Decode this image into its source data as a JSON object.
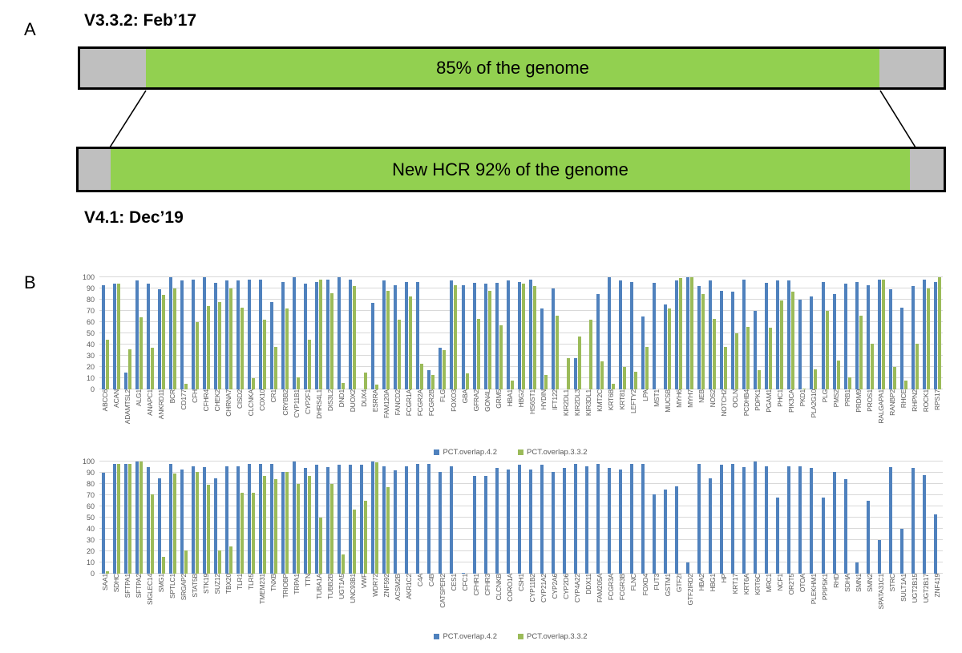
{
  "panel_a": {
    "label": "A",
    "title_top": "V3.3.2: Feb’17",
    "title_bottom": "V4.1: Dec’19",
    "bar_top_text": "85% of the genome",
    "bar_bottom_text": "New HCR 92% of the genome",
    "colors": {
      "green": "#92d050",
      "grey": "#bfbfbf",
      "border": "#000000"
    }
  },
  "panel_b": {
    "label": "B"
  },
  "chart_data": [
    {
      "type": "bar",
      "title": "",
      "xlabel": "",
      "ylabel": "",
      "ylim": [
        0,
        100
      ],
      "yticks": [
        0,
        10,
        20,
        30,
        40,
        50,
        60,
        70,
        80,
        90,
        100
      ],
      "grid": true,
      "legend_position": "bottom",
      "categories": [
        "ABCC6",
        "ACAN",
        "ADAMTSL2",
        "ALG1",
        "ANAPC1",
        "ANKRD11",
        "BCR",
        "CD177",
        "CFH",
        "CFHR4",
        "CHEK2",
        "CHRNA7",
        "CISD2",
        "CLCNKA",
        "COX10",
        "CR1",
        "CRYBB2",
        "CYP11B1",
        "CYP2F1",
        "DHRS4L1",
        "DIS3L2",
        "DND1",
        "DUOX2",
        "DUX4",
        "ESRRA",
        "FAM120A",
        "FANCD2",
        "FCGR1A",
        "FCGR2A",
        "FCGR2B",
        "FLG",
        "FOXO3",
        "GBA",
        "GFRA2",
        "GON4L",
        "GRM5",
        "HBA1",
        "HBG2",
        "HS6ST1",
        "HYDIN",
        "IFT122",
        "KIR2DL1",
        "KIR2DL3",
        "KIR3DL1",
        "KMT2C",
        "KRT6B",
        "KRT81",
        "LEFTY2",
        "LPA",
        "MST1",
        "MUC5B",
        "MYH6",
        "MYH7",
        "NEB",
        "NOS2",
        "NOTCH2",
        "OCLN",
        "PCDHB4",
        "PDPK1",
        "PGAM1",
        "PHC1",
        "PIK3CA",
        "PKD1",
        "PLA2G10",
        "PLG",
        "PMS2",
        "PRB1",
        "PRDM9",
        "PROS1",
        "RALGAPA1",
        "RANBP2",
        "RHCE",
        "RHPN2",
        "ROCK1",
        "RPS17"
      ],
      "series": [
        {
          "name": "PCT.overlap.4.2",
          "color": "#4f81bd",
          "values": [
            93,
            94,
            15,
            97,
            94,
            89,
            100,
            97,
            98,
            100,
            95,
            97,
            97,
            98,
            98,
            78,
            96,
            100,
            94,
            96,
            98,
            100,
            98,
            0,
            77,
            97,
            93,
            96,
            96,
            17,
            37,
            97,
            93,
            95,
            94,
            95,
            97,
            96,
            98,
            72,
            90,
            0,
            28,
            0,
            85,
            100,
            97,
            96,
            65,
            95,
            76,
            97,
            100,
            92,
            97,
            88,
            87,
            98,
            70,
            95,
            97,
            97,
            80,
            83,
            96,
            85,
            94,
            96,
            93,
            98,
            89,
            73,
            92,
            98,
            96
          ]
        },
        {
          "name": "PCT.overlap.3.3.2",
          "color": "#9bbb59",
          "values": [
            44,
            94,
            36,
            64,
            37,
            84,
            90,
            5,
            60,
            74,
            78,
            90,
            73,
            10,
            62,
            38,
            72,
            11,
            44,
            98,
            86,
            6,
            92,
            15,
            4,
            88,
            62,
            83,
            23,
            13,
            35,
            93,
            14,
            63,
            88,
            57,
            8,
            94,
            92,
            13,
            66,
            28,
            47,
            62,
            25,
            5,
            20,
            16,
            38,
            0,
            72,
            99,
            100,
            85,
            63,
            38,
            50,
            56,
            17,
            55,
            79,
            87,
            1,
            18,
            70,
            26,
            11,
            66,
            41,
            98,
            20,
            8,
            41,
            90,
            100
          ]
        }
      ]
    },
    {
      "type": "bar",
      "title": "",
      "xlabel": "",
      "ylabel": "",
      "ylim": [
        0,
        100
      ],
      "yticks": [
        0,
        10,
        20,
        30,
        40,
        50,
        60,
        70,
        80,
        90,
        100
      ],
      "grid": true,
      "legend_position": "bottom",
      "categories": [
        "SAA1",
        "SDHC",
        "SFTPA1",
        "SFTPA2",
        "SIGLEC14",
        "SMG1",
        "SPTLC1",
        "SRGAP2",
        "STAT5B",
        "STK19",
        "SUZ12",
        "TBX20",
        "TLR1",
        "TLR5",
        "TMEM231",
        "TNXB",
        "TRIOBP",
        "TRPA1",
        "TTN",
        "TUBA1A",
        "TUBB2B",
        "UGT1A5",
        "UNC93B1",
        "VWF",
        "WDR72",
        "ZNF592",
        "ACSM2B",
        "AKR1C2",
        "C4A",
        "C4B",
        "CATSPER2",
        "CES1",
        "CFC1",
        "CFHR1",
        "CFHR3",
        "CLCNKB",
        "CORO1A",
        "CSH1",
        "CYP11B2",
        "CYP21A2",
        "CYP2A6",
        "CYP2D6",
        "CYP4A22",
        "DDX11",
        "FAM205A",
        "FCGR3A",
        "FCGR3B",
        "FLNC",
        "FOXD4",
        "FUT3",
        "GSTM1",
        "GTF2I",
        "GTF2IRD2",
        "HBA2",
        "HBG1",
        "HP",
        "KRT17",
        "KRT6A",
        "KRT6C",
        "MRC1",
        "NCF1",
        "OR2T5",
        "OTOA",
        "PLEKHM1",
        "PPIP5K1",
        "RHD",
        "SDHA",
        "SMN1",
        "SMN2",
        "SPATA31C1",
        "STRC",
        "SULT1A1",
        "UGT2B15",
        "UGT2B17",
        "ZNF419"
      ],
      "series": [
        {
          "name": "PCT.overlap.4.2",
          "color": "#4f81bd",
          "values": [
            90,
            98,
            98,
            100,
            95,
            85,
            98,
            93,
            96,
            95,
            85,
            96,
            96,
            98,
            98,
            98,
            91,
            100,
            94,
            97,
            95,
            97,
            97,
            97,
            100,
            96,
            92,
            96,
            98,
            98,
            91,
            96,
            1,
            87,
            87,
            94,
            93,
            97,
            93,
            97,
            91,
            94,
            98,
            96,
            98,
            94,
            93,
            98,
            98,
            71,
            75,
            78,
            10,
            98,
            85,
            97,
            98,
            95,
            100,
            96,
            68,
            96,
            96,
            94,
            68,
            91,
            84,
            10,
            65,
            30,
            95,
            40,
            94,
            88,
            53
          ]
        },
        {
          "name": "PCT.overlap.3.3.2",
          "color": "#9bbb59",
          "values": [
            2,
            98,
            98,
            100,
            71,
            15,
            89,
            21,
            91,
            79,
            21,
            24,
            72,
            72,
            87,
            84,
            91,
            80,
            87,
            50,
            80,
            17,
            57,
            65,
            99,
            77,
            0,
            0,
            0,
            0,
            0,
            0,
            0,
            0,
            0,
            0,
            0,
            0,
            0,
            0,
            0,
            0,
            0,
            0,
            0,
            0,
            0,
            0,
            0,
            0,
            0,
            0,
            0,
            0,
            0,
            0,
            0,
            0,
            0,
            0,
            0,
            0,
            0,
            0,
            0,
            0,
            0,
            0,
            0,
            0,
            0,
            0,
            0,
            0,
            0
          ]
        }
      ]
    }
  ]
}
